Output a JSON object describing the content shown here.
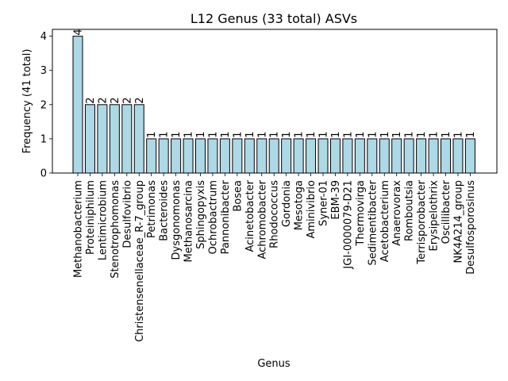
{
  "chart_data": {
    "type": "bar",
    "title": "L12 Genus (33 total) ASVs",
    "xlabel": "Genus",
    "ylabel": "Frequency (41 total)",
    "ylim": [
      0,
      4.2
    ],
    "yticks": [
      0,
      1,
      2,
      3,
      4
    ],
    "grid": false,
    "legend": "none",
    "bar_color": "#add8e6",
    "edge_color": "#000000",
    "categories": [
      "Methanobacterium",
      "Proteiniphilum",
      "Lentimicrobium",
      "Stenotrophomonas",
      "Desulfovibrio",
      "Christensenellaceae_R-7_group",
      "Petrimonas",
      "Bacteroides",
      "Dysgonomonas",
      "Methanosarcina",
      "Sphingopyxis",
      "Ochrobactrum",
      "Pannonibacter",
      "Bosea",
      "Acinetobacter",
      "Achromobacter",
      "Rhodococcus",
      "Gordonia",
      "Mesotoga",
      "Aminivibrio",
      "Syner-01",
      "EBM-39",
      "JGI-0000079-D21",
      "Thermovirga",
      "Sedimentibacter",
      "Acetobacterium",
      "Anaerovorax",
      "Romboutsia",
      "Terrisporobacter",
      "Erysipelothrix",
      "Oscillibacter",
      "NK4A214_group",
      "Desulfosporosinus"
    ],
    "values": [
      4,
      2,
      2,
      2,
      2,
      2,
      1,
      1,
      1,
      1,
      1,
      1,
      1,
      1,
      1,
      1,
      1,
      1,
      1,
      1,
      1,
      1,
      1,
      1,
      1,
      1,
      1,
      1,
      1,
      1,
      1,
      1,
      1
    ],
    "data_labels": [
      "4",
      "2",
      "2",
      "2",
      "2",
      "2",
      "1",
      "1",
      "1",
      "1",
      "1",
      "1",
      "1",
      "1",
      "1",
      "1",
      "1",
      "1",
      "1",
      "1",
      "1",
      "1",
      "1",
      "1",
      "1",
      "1",
      "1",
      "1",
      "1",
      "1",
      "1",
      "1",
      "1"
    ]
  }
}
